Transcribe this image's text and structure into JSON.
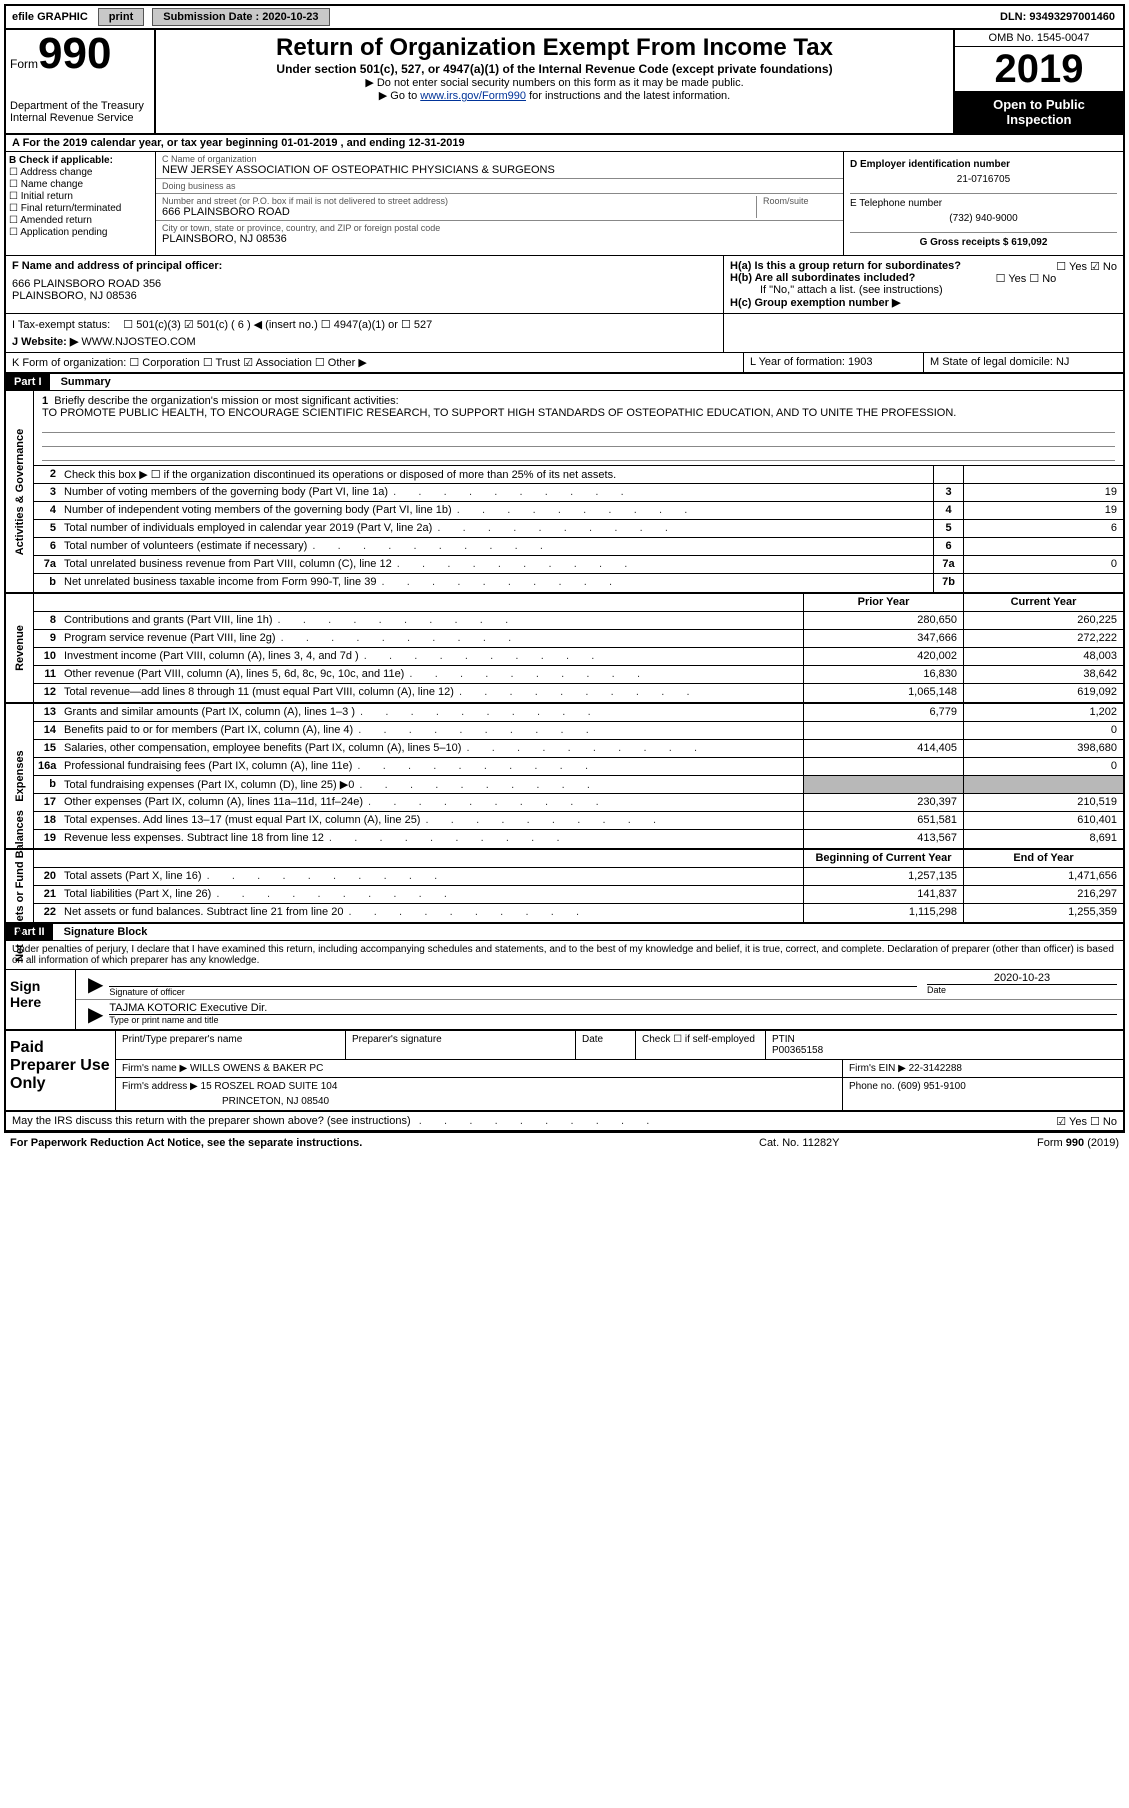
{
  "topbar": {
    "efile": "efile GRAPHIC",
    "print": "print",
    "submission_label": "Submission Date : 2020-10-23",
    "dln": "DLN: 93493297001460"
  },
  "header": {
    "form_word": "Form",
    "form_num": "990",
    "dept": "Department of the Treasury\nInternal Revenue Service",
    "title": "Return of Organization Exempt From Income Tax",
    "sub": "Under section 501(c), 527, or 4947(a)(1) of the Internal Revenue Code (except private foundations)",
    "sub2a": "▶ Do not enter social security numbers on this form as it may be made public.",
    "sub2b_pre": "▶ Go to ",
    "sub2b_link": "www.irs.gov/Form990",
    "sub2b_post": " for instructions and the latest information.",
    "omb": "OMB No. 1545-0047",
    "year": "2019",
    "open": "Open to Public Inspection"
  },
  "row_a": "A For the 2019 calendar year, or tax year beginning 01-01-2019    , and ending 12-31-2019",
  "section_b": {
    "b_label": "B Check if applicable:",
    "checks": [
      "☐ Address change",
      "☐ Name change",
      "☐ Initial return",
      "☐ Final return/terminated",
      "☐ Amended return",
      "☐ Application pending"
    ],
    "c_name_label": "C Name of organization",
    "c_name": "NEW JERSEY ASSOCIATION OF OSTEOPATHIC PHYSICIANS & SURGEONS",
    "dba_label": "Doing business as",
    "dba": "",
    "addr_label": "Number and street (or P.O. box if mail is not delivered to street address)",
    "room_label": "Room/suite",
    "addr": "666 PLAINSBORO ROAD",
    "city_label": "City or town, state or province, country, and ZIP or foreign postal code",
    "city": "PLAINSBORO, NJ  08536",
    "d_label": "D Employer identification number",
    "d_val": "21-0716705",
    "e_label": "E Telephone number",
    "e_val": "(732) 940-9000",
    "g_label": "G Gross receipts $ 619,092"
  },
  "fgh": {
    "f_label": "F  Name and address of principal officer:",
    "f_val": "666 PLAINSBORO ROAD 356\nPLAINSBORO, NJ  08536",
    "ha": "H(a)  Is this a group return for subordinates?",
    "ha_ans": "☐ Yes  ☑ No",
    "hb": "H(b)  Are all subordinates included?",
    "hb_ans": "☐ Yes  ☐ No",
    "hb_note": "If \"No,\" attach a list. (see instructions)",
    "hc": "H(c)  Group exemption number ▶"
  },
  "row_i": {
    "label": "I   Tax-exempt status:",
    "opts": "☐ 501(c)(3)   ☑ 501(c) ( 6 ) ◀ (insert no.)   ☐ 4947(a)(1) or  ☐ 527"
  },
  "row_j": {
    "label": "J   Website: ▶",
    "val": "WWW.NJOSTEO.COM"
  },
  "row_k": {
    "k": "K Form of organization:  ☐ Corporation  ☐ Trust  ☑ Association  ☐ Other ▶",
    "l": "L Year of formation: 1903",
    "m": "M State of legal domicile: NJ"
  },
  "part1": {
    "hdr": "Part I",
    "title": "Summary"
  },
  "mission": {
    "num": "1",
    "label": "Briefly describe the organization's mission or most significant activities:",
    "text": "TO PROMOTE PUBLIC HEALTH, TO ENCOURAGE SCIENTIFIC RESEARCH, TO SUPPORT HIGH STANDARDS OF OSTEOPATHIC EDUCATION, AND TO UNITE THE PROFESSION."
  },
  "gov_rows": [
    {
      "n": "2",
      "d": "Check this box ▶ ☐  if the organization discontinued its operations or disposed of more than 25% of its net assets.",
      "box": "",
      "v": ""
    },
    {
      "n": "3",
      "d": "Number of voting members of the governing body (Part VI, line 1a)",
      "box": "3",
      "v": "19"
    },
    {
      "n": "4",
      "d": "Number of independent voting members of the governing body (Part VI, line 1b)",
      "box": "4",
      "v": "19"
    },
    {
      "n": "5",
      "d": "Total number of individuals employed in calendar year 2019 (Part V, line 2a)",
      "box": "5",
      "v": "6"
    },
    {
      "n": "6",
      "d": "Total number of volunteers (estimate if necessary)",
      "box": "6",
      "v": ""
    },
    {
      "n": "7a",
      "d": "Total unrelated business revenue from Part VIII, column (C), line 12",
      "box": "7a",
      "v": "0"
    },
    {
      "n": "b",
      "d": "Net unrelated business taxable income from Form 990-T, line 39",
      "box": "7b",
      "v": ""
    }
  ],
  "col_hdr": {
    "prior": "Prior Year",
    "current": "Current Year"
  },
  "rev_rows": [
    {
      "n": "8",
      "d": "Contributions and grants (Part VIII, line 1h)",
      "p": "280,650",
      "c": "260,225"
    },
    {
      "n": "9",
      "d": "Program service revenue (Part VIII, line 2g)",
      "p": "347,666",
      "c": "272,222"
    },
    {
      "n": "10",
      "d": "Investment income (Part VIII, column (A), lines 3, 4, and 7d )",
      "p": "420,002",
      "c": "48,003"
    },
    {
      "n": "11",
      "d": "Other revenue (Part VIII, column (A), lines 5, 6d, 8c, 9c, 10c, and 11e)",
      "p": "16,830",
      "c": "38,642"
    },
    {
      "n": "12",
      "d": "Total revenue—add lines 8 through 11 (must equal Part VIII, column (A), line 12)",
      "p": "1,065,148",
      "c": "619,092"
    }
  ],
  "exp_rows": [
    {
      "n": "13",
      "d": "Grants and similar amounts (Part IX, column (A), lines 1–3 )",
      "p": "6,779",
      "c": "1,202"
    },
    {
      "n": "14",
      "d": "Benefits paid to or for members (Part IX, column (A), line 4)",
      "p": "",
      "c": "0"
    },
    {
      "n": "15",
      "d": "Salaries, other compensation, employee benefits (Part IX, column (A), lines 5–10)",
      "p": "414,405",
      "c": "398,680"
    },
    {
      "n": "16a",
      "d": "Professional fundraising fees (Part IX, column (A), line 11e)",
      "p": "",
      "c": "0"
    },
    {
      "n": "b",
      "d": "Total fundraising expenses (Part IX, column (D), line 25) ▶0",
      "p": "shade",
      "c": "shade"
    },
    {
      "n": "17",
      "d": "Other expenses (Part IX, column (A), lines 11a–11d, 11f–24e)",
      "p": "230,397",
      "c": "210,519"
    },
    {
      "n": "18",
      "d": "Total expenses. Add lines 13–17 (must equal Part IX, column (A), line 25)",
      "p": "651,581",
      "c": "610,401"
    },
    {
      "n": "19",
      "d": "Revenue less expenses. Subtract line 18 from line 12",
      "p": "413,567",
      "c": "8,691"
    }
  ],
  "net_hdr": {
    "begin": "Beginning of Current Year",
    "end": "End of Year"
  },
  "net_rows": [
    {
      "n": "20",
      "d": "Total assets (Part X, line 16)",
      "p": "1,257,135",
      "c": "1,471,656"
    },
    {
      "n": "21",
      "d": "Total liabilities (Part X, line 26)",
      "p": "141,837",
      "c": "216,297"
    },
    {
      "n": "22",
      "d": "Net assets or fund balances. Subtract line 21 from line 20",
      "p": "1,115,298",
      "c": "1,255,359"
    }
  ],
  "sides": {
    "gov": "Activities & Governance",
    "rev": "Revenue",
    "exp": "Expenses",
    "net": "Net Assets or Fund Balances"
  },
  "part2": {
    "hdr": "Part II",
    "title": "Signature Block"
  },
  "penalty": "Under penalties of perjury, I declare that I have examined this return, including accompanying schedules and statements, and to the best of my knowledge and belief, it is true, correct, and complete. Declaration of preparer (other than officer) is based on all information of which preparer has any knowledge.",
  "sign": {
    "here": "Sign Here",
    "sig_label": "Signature of officer",
    "date_label": "Date",
    "date": "2020-10-23",
    "name": "TAJMA KOTORIC  Executive Dir.",
    "name_label": "Type or print name and title"
  },
  "paid": {
    "label": "Paid Preparer Use Only",
    "r1": {
      "a": "Print/Type preparer's name",
      "b": "Preparer's signature",
      "c": "Date",
      "d": "Check ☐ if self-employed",
      "e": "PTIN\nP00365158"
    },
    "r2": {
      "a": "Firm's name      ▶ WILLS OWENS & BAKER PC",
      "b": "Firm's EIN ▶ 22-3142288"
    },
    "r3": {
      "a": "Firm's address ▶ 15 ROSZEL ROAD SUITE 104",
      "b": "Phone no. (609) 951-9100"
    },
    "r3b": "PRINCETON, NJ  08540"
  },
  "discuss": {
    "q": "May the IRS discuss this return with the preparer shown above? (see instructions)",
    "a": "☑ Yes  ☐ No"
  },
  "footer": {
    "l": "For Paperwork Reduction Act Notice, see the separate instructions.",
    "m": "Cat. No. 11282Y",
    "r": "Form 990 (2019)"
  }
}
